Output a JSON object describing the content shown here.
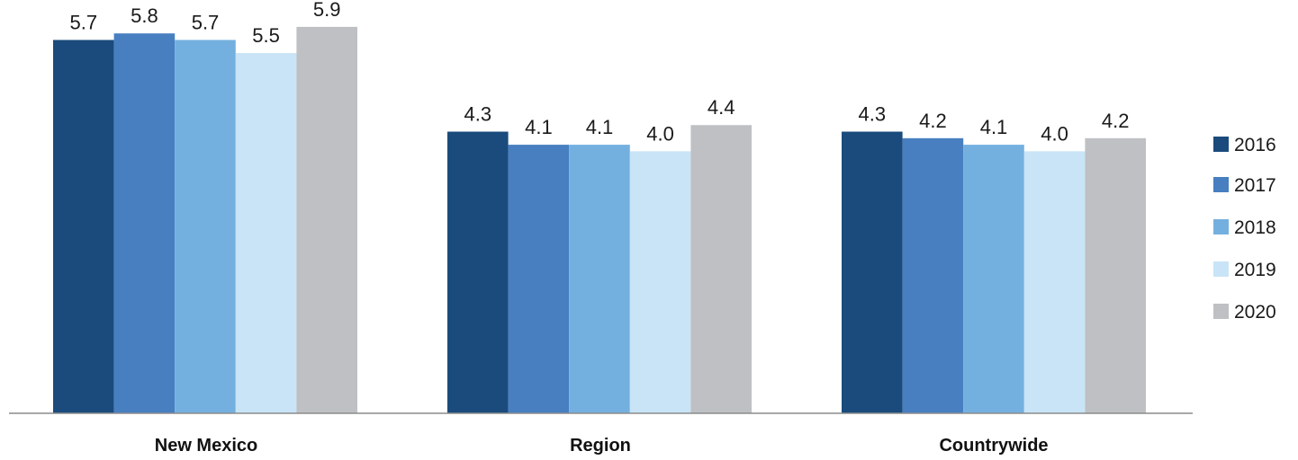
{
  "chart_data": {
    "type": "bar",
    "title": "",
    "xlabel": "",
    "ylabel": "",
    "categories": [
      "New Mexico",
      "Region",
      "Countrywide"
    ],
    "series": [
      {
        "name": "2016",
        "color": "#1a4b7c",
        "values": [
          5.7,
          4.3,
          4.3
        ]
      },
      {
        "name": "2017",
        "color": "#477fc1",
        "values": [
          5.8,
          4.1,
          4.2
        ]
      },
      {
        "name": "2018",
        "color": "#74b0df",
        "values": [
          5.7,
          4.1,
          4.1
        ]
      },
      {
        "name": "2019",
        "color": "#c9e4f6",
        "values": [
          5.5,
          4.0,
          4.0
        ]
      },
      {
        "name": "2020",
        "color": "#bfc0c3",
        "values": [
          5.9,
          4.4,
          4.2
        ]
      }
    ],
    "value_labels": true,
    "ylim": [
      0,
      5.9
    ],
    "grid": false,
    "legend_position": "right"
  }
}
